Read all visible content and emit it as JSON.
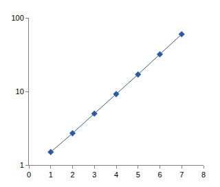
{
  "chart_data": {
    "type": "line",
    "x": [
      1,
      2,
      3,
      4,
      5,
      6,
      7
    ],
    "values": [
      1.5,
      2.7,
      5,
      9.2,
      17,
      32,
      60
    ],
    "color": "#2a5ba0",
    "marker": "diamond",
    "line_style": "solid",
    "log": "y",
    "grid": false,
    "xlim": [
      0,
      8
    ],
    "xticks": [
      0,
      1,
      2,
      3,
      4,
      5,
      6,
      7,
      8
    ],
    "ylim": [
      1,
      100
    ],
    "yticks": [
      1,
      10,
      100
    ]
  }
}
